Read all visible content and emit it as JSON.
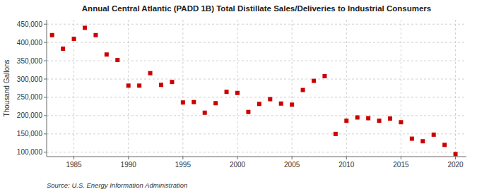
{
  "chart_data": {
    "type": "scatter",
    "title": "Annual Central Atlantic (PADD 1B) Total Distillate Sales/Deliveries to Industrial Consumers",
    "ylabel": "Thousand Gallons",
    "source": "Source: U.S. Energy Information Administration",
    "color": "#cc0000",
    "marker": "square",
    "grid": true,
    "xlim": [
      1982.5,
      2021
    ],
    "ylim": [
      88000,
      462000
    ],
    "xticks": [
      1985,
      1990,
      1995,
      2000,
      2005,
      2010,
      2015,
      2020
    ],
    "yticks": [
      {
        "value": 100000,
        "label": "100,000"
      },
      {
        "value": 150000,
        "label": "150,000"
      },
      {
        "value": 200000,
        "label": "200,000"
      },
      {
        "value": 250000,
        "label": "250,000"
      },
      {
        "value": 300000,
        "label": "300,000"
      },
      {
        "value": 350000,
        "label": "350,000"
      },
      {
        "value": 400000,
        "label": "400,000"
      },
      {
        "value": 450000,
        "label": "450,000"
      }
    ],
    "x": [
      1983,
      1984,
      1985,
      1986,
      1987,
      1988,
      1989,
      1990,
      1991,
      1992,
      1993,
      1994,
      1995,
      1996,
      1997,
      1998,
      1999,
      2000,
      2001,
      2002,
      2003,
      2004,
      2005,
      2006,
      2007,
      2008,
      2009,
      2010,
      2011,
      2012,
      2013,
      2014,
      2015,
      2016,
      2017,
      2018,
      2019,
      2020
    ],
    "values": [
      420000,
      383000,
      410000,
      440000,
      420000,
      367000,
      352000,
      282000,
      282000,
      316000,
      284000,
      292000,
      236000,
      237000,
      208000,
      234000,
      265000,
      262000,
      210000,
      232000,
      245000,
      233000,
      230000,
      270000,
      295000,
      308000,
      150000,
      186000,
      195000,
      193000,
      186000,
      192000,
      182000,
      137000,
      130000,
      148000,
      120000,
      95000
    ]
  }
}
